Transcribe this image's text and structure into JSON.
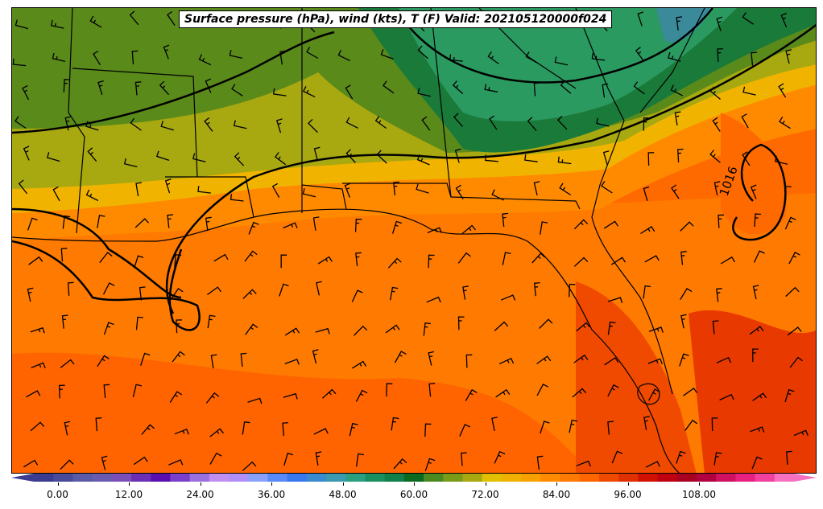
{
  "title": "Surface pressure (hPa), wind (kts), T (F) Valid: 202105120000f024",
  "isobar_label": "1016",
  "colorbar": {
    "min": -4,
    "max": 124,
    "step": 4,
    "colors": [
      "#3b3b8f",
      "#4a4a9a",
      "#5a5aa6",
      "#6a5ab0",
      "#7b4fb8",
      "#6a2fb5",
      "#5a10b0",
      "#7a3fcc",
      "#9a6fe0",
      "#c08ff0",
      "#b090f8",
      "#8aa0ff",
      "#5a8af8",
      "#3a78f0",
      "#3a8ad0",
      "#3a9ab0",
      "#2aa080",
      "#1a9060",
      "#10804a",
      "#0a6a20",
      "#4a8a20",
      "#7a9a1a",
      "#a8a810",
      "#e0c000",
      "#f0b000",
      "#f8a000",
      "#ff8a00",
      "#ff7a00",
      "#ff6600",
      "#f04a00",
      "#e03000",
      "#d01000",
      "#c00010",
      "#a80020",
      "#b00040",
      "#d01060",
      "#e82080",
      "#f040a0",
      "#f870c0"
    ],
    "tick_labels": [
      "0.00",
      "12.00",
      "24.00",
      "36.00",
      "48.00",
      "60.00",
      "72.00",
      "84.00",
      "96.00",
      "108.00"
    ],
    "tick_values": [
      0,
      12,
      24,
      36,
      48,
      60,
      72,
      84,
      96,
      108
    ]
  }
}
